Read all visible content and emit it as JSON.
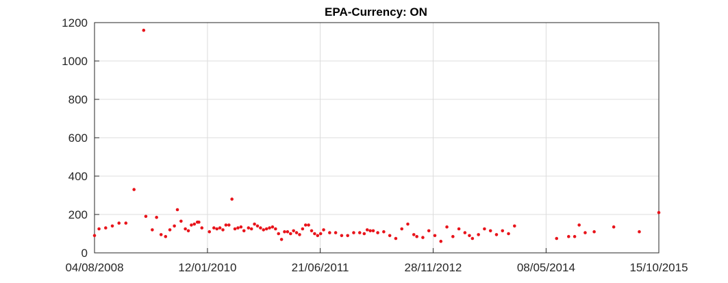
{
  "chart_data": {
    "type": "scatter",
    "title": "EPA-Currency: ON",
    "xlabel": "",
    "ylabel": "",
    "x_ticks": [
      "04/08/2008",
      "12/01/2010",
      "21/06/2011",
      "28/11/2012",
      "08/05/2014",
      "15/10/2015"
    ],
    "y_ticks": [
      "0",
      "200",
      "400",
      "600",
      "800",
      "1000",
      "1200"
    ],
    "xlim": [
      "04/08/2008",
      "15/10/2015"
    ],
    "ylim": [
      0,
      1200
    ],
    "grid": true,
    "marker_color": "#e8141b",
    "points": [
      [
        "2008-08-04",
        90
      ],
      [
        "2008-08-25",
        125
      ],
      [
        "2008-09-25",
        130
      ],
      [
        "2008-10-26",
        140
      ],
      [
        "2008-11-26",
        155
      ],
      [
        "2008-12-28",
        155
      ],
      [
        "2009-02-04",
        330
      ],
      [
        "2009-03-21",
        1160
      ],
      [
        "2009-03-31",
        190
      ],
      [
        "2009-04-30",
        120
      ],
      [
        "2009-05-20",
        185
      ],
      [
        "2009-06-10",
        95
      ],
      [
        "2009-07-01",
        85
      ],
      [
        "2009-07-21",
        120
      ],
      [
        "2009-08-11",
        140
      ],
      [
        "2009-08-25",
        225
      ],
      [
        "2009-09-11",
        165
      ],
      [
        "2009-10-01",
        125
      ],
      [
        "2009-10-15",
        115
      ],
      [
        "2009-10-29",
        145
      ],
      [
        "2009-11-12",
        150
      ],
      [
        "2009-11-26",
        160
      ],
      [
        "2009-12-03",
        160
      ],
      [
        "2009-12-17",
        130
      ],
      [
        "2010-01-21",
        110
      ],
      [
        "2010-02-11",
        130
      ],
      [
        "2010-02-25",
        125
      ],
      [
        "2010-03-11",
        130
      ],
      [
        "2010-03-25",
        120
      ],
      [
        "2010-04-08",
        145
      ],
      [
        "2010-04-22",
        145
      ],
      [
        "2010-05-06",
        280
      ],
      [
        "2010-05-20",
        125
      ],
      [
        "2010-06-03",
        130
      ],
      [
        "2010-06-17",
        135
      ],
      [
        "2010-07-01",
        115
      ],
      [
        "2010-07-22",
        130
      ],
      [
        "2010-08-05",
        125
      ],
      [
        "2010-08-19",
        150
      ],
      [
        "2010-09-02",
        140
      ],
      [
        "2010-09-16",
        130
      ],
      [
        "2010-09-30",
        120
      ],
      [
        "2010-10-14",
        125
      ],
      [
        "2010-10-28",
        130
      ],
      [
        "2010-11-11",
        135
      ],
      [
        "2010-11-25",
        125
      ],
      [
        "2010-12-09",
        100
      ],
      [
        "2010-12-23",
        70
      ],
      [
        "2011-01-06",
        110
      ],
      [
        "2011-01-20",
        110
      ],
      [
        "2011-02-03",
        100
      ],
      [
        "2011-02-17",
        115
      ],
      [
        "2011-03-03",
        105
      ],
      [
        "2011-03-17",
        95
      ],
      [
        "2011-03-31",
        125
      ],
      [
        "2011-04-14",
        145
      ],
      [
        "2011-04-28",
        145
      ],
      [
        "2011-05-12",
        115
      ],
      [
        "2011-05-26",
        100
      ],
      [
        "2011-06-09",
        90
      ],
      [
        "2011-06-23",
        100
      ],
      [
        "2011-07-07",
        120
      ],
      [
        "2011-08-04",
        105
      ],
      [
        "2011-09-01",
        105
      ],
      [
        "2011-09-29",
        90
      ],
      [
        "2011-10-27",
        90
      ],
      [
        "2011-11-24",
        105
      ],
      [
        "2011-12-22",
        105
      ],
      [
        "2012-01-12",
        100
      ],
      [
        "2012-01-26",
        120
      ],
      [
        "2012-02-09",
        115
      ],
      [
        "2012-02-23",
        115
      ],
      [
        "2012-03-15",
        105
      ],
      [
        "2012-04-12",
        110
      ],
      [
        "2012-05-10",
        90
      ],
      [
        "2012-06-07",
        75
      ],
      [
        "2012-07-05",
        125
      ],
      [
        "2012-08-02",
        150
      ],
      [
        "2012-08-30",
        95
      ],
      [
        "2012-09-13",
        85
      ],
      [
        "2012-10-11",
        80
      ],
      [
        "2012-11-08",
        115
      ],
      [
        "2012-12-06",
        90
      ],
      [
        "2013-01-03",
        60
      ],
      [
        "2013-01-31",
        135
      ],
      [
        "2013-02-28",
        85
      ],
      [
        "2013-03-28",
        125
      ],
      [
        "2013-04-25",
        105
      ],
      [
        "2013-05-16",
        90
      ],
      [
        "2013-05-30",
        75
      ],
      [
        "2013-06-27",
        95
      ],
      [
        "2013-07-25",
        125
      ],
      [
        "2013-08-22",
        115
      ],
      [
        "2013-09-19",
        95
      ],
      [
        "2013-10-17",
        115
      ],
      [
        "2013-11-14",
        100
      ],
      [
        "2013-12-12",
        140
      ],
      [
        "2014-06-26",
        75
      ],
      [
        "2014-08-21",
        85
      ],
      [
        "2014-09-18",
        85
      ],
      [
        "2014-10-09",
        145
      ],
      [
        "2014-11-06",
        105
      ],
      [
        "2014-12-18",
        110
      ],
      [
        "2015-03-19",
        135
      ],
      [
        "2015-07-16",
        110
      ],
      [
        "2015-10-15",
        210
      ]
    ]
  }
}
